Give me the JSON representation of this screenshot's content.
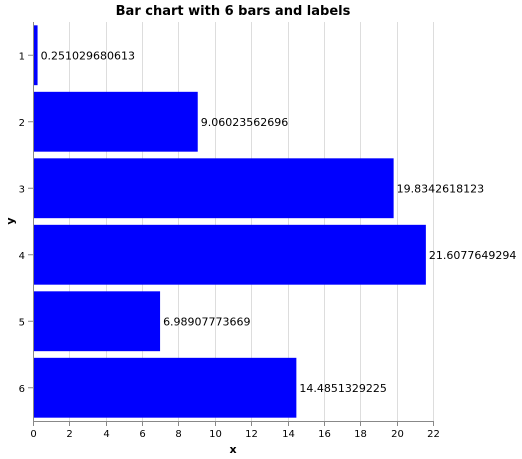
{
  "chart_data": {
    "type": "bar",
    "orientation": "horizontal",
    "title": "Bar chart with 6 bars and labels",
    "xlabel": "x",
    "ylabel": "y",
    "categories": [
      "1",
      "2",
      "3",
      "4",
      "5",
      "6"
    ],
    "values": [
      0.251029680613,
      9.06023562696,
      19.8342618123,
      21.6077649294,
      6.98907773669,
      14.4851329225
    ],
    "data_labels": [
      "0.251029680613",
      "9.06023562696",
      "19.8342618123",
      "21.6077649294",
      "6.98907773669",
      "14.4851329225"
    ],
    "xlim": [
      0,
      22
    ],
    "xticks": [
      0,
      2,
      4,
      6,
      8,
      10,
      12,
      14,
      16,
      18,
      20,
      22
    ],
    "grid": true,
    "bar_color": "#0000ff"
  }
}
